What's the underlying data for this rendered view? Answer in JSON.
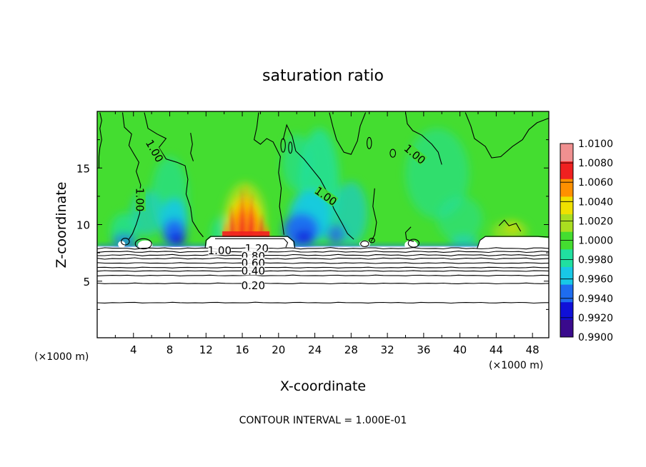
{
  "chart_data": {
    "type": "heatmap",
    "title": "saturation ratio",
    "xlabel": "X-coordinate",
    "ylabel": "Z-coordinate",
    "x_unit_left": "(×1000 m)",
    "x_unit_right": "(×1000 m)",
    "xlim": [
      0,
      49.8
    ],
    "ylim": [
      0,
      20
    ],
    "x_ticks": [
      4,
      8,
      12,
      16,
      20,
      24,
      28,
      32,
      36,
      40,
      44,
      48
    ],
    "x_tick_labels": [
      "4",
      "8",
      "12",
      "16",
      "20",
      "24",
      "28",
      "32",
      "36",
      "40",
      "44",
      "48"
    ],
    "y_ticks": [
      5,
      10,
      15
    ],
    "y_tick_labels": [
      "5",
      "10",
      "15"
    ],
    "footer": "CONTOUR INTERVAL = 1.000E-01",
    "colorbar": {
      "levels": [
        0.99,
        0.992,
        0.994,
        0.996,
        0.998,
        1.0,
        1.002,
        1.004,
        1.006,
        1.008,
        1.01
      ],
      "labels": [
        "0.9900",
        "0.9920",
        "0.9940",
        "0.9960",
        "0.9980",
        "1.0000",
        "1.0020",
        "1.0040",
        "1.0060",
        "1.0080",
        "1.0100"
      ],
      "colors": [
        "#3a0a8c",
        "#1010d8",
        "#1e6cf0",
        "#18c8e6",
        "#20e0a0",
        "#44dd30",
        "#aade20",
        "#f0e000",
        "#ff9000",
        "#f02020",
        "#f09090"
      ]
    },
    "contour_labels": [
      {
        "text": "1.00",
        "x": 6.3,
        "z": 16.5,
        "rotate": 60
      },
      {
        "text": "1.00",
        "x": 4.7,
        "z": 12.2,
        "rotate": 90
      },
      {
        "text": "1.00",
        "x": 25.2,
        "z": 12.5,
        "rotate": 35
      },
      {
        "text": "1.00",
        "x": 35.0,
        "z": 16.2,
        "rotate": 40
      },
      {
        "text": "1.00",
        "x": 13.5,
        "z": 7.7,
        "rotate": 0
      },
      {
        "text": "1.20",
        "x": 17.6,
        "z": 7.9,
        "rotate": 0
      },
      {
        "text": "0.80",
        "x": 17.2,
        "z": 7.2,
        "rotate": 0
      },
      {
        "text": "0.60",
        "x": 17.2,
        "z": 6.6,
        "rotate": 0
      },
      {
        "text": "0.40",
        "x": 17.2,
        "z": 5.9,
        "rotate": 0
      },
      {
        "text": "0.20",
        "x": 17.2,
        "z": 4.6,
        "rotate": 0
      }
    ],
    "field_features": [
      {
        "kind": "saturated plume (max ~1.008)",
        "x_center": 16.3,
        "z_base": 8.9,
        "z_top": 13.8
      },
      {
        "kind": "subsaturated minima (~0.992)",
        "x_center": 8.5,
        "z": 9.3
      },
      {
        "kind": "subsaturated minima (~0.992)",
        "x_center": 23.0,
        "z": 9.3
      },
      {
        "kind": "moderate supersaturation (~1.003)",
        "x_center": 45.5,
        "z": 9.6
      }
    ]
  }
}
